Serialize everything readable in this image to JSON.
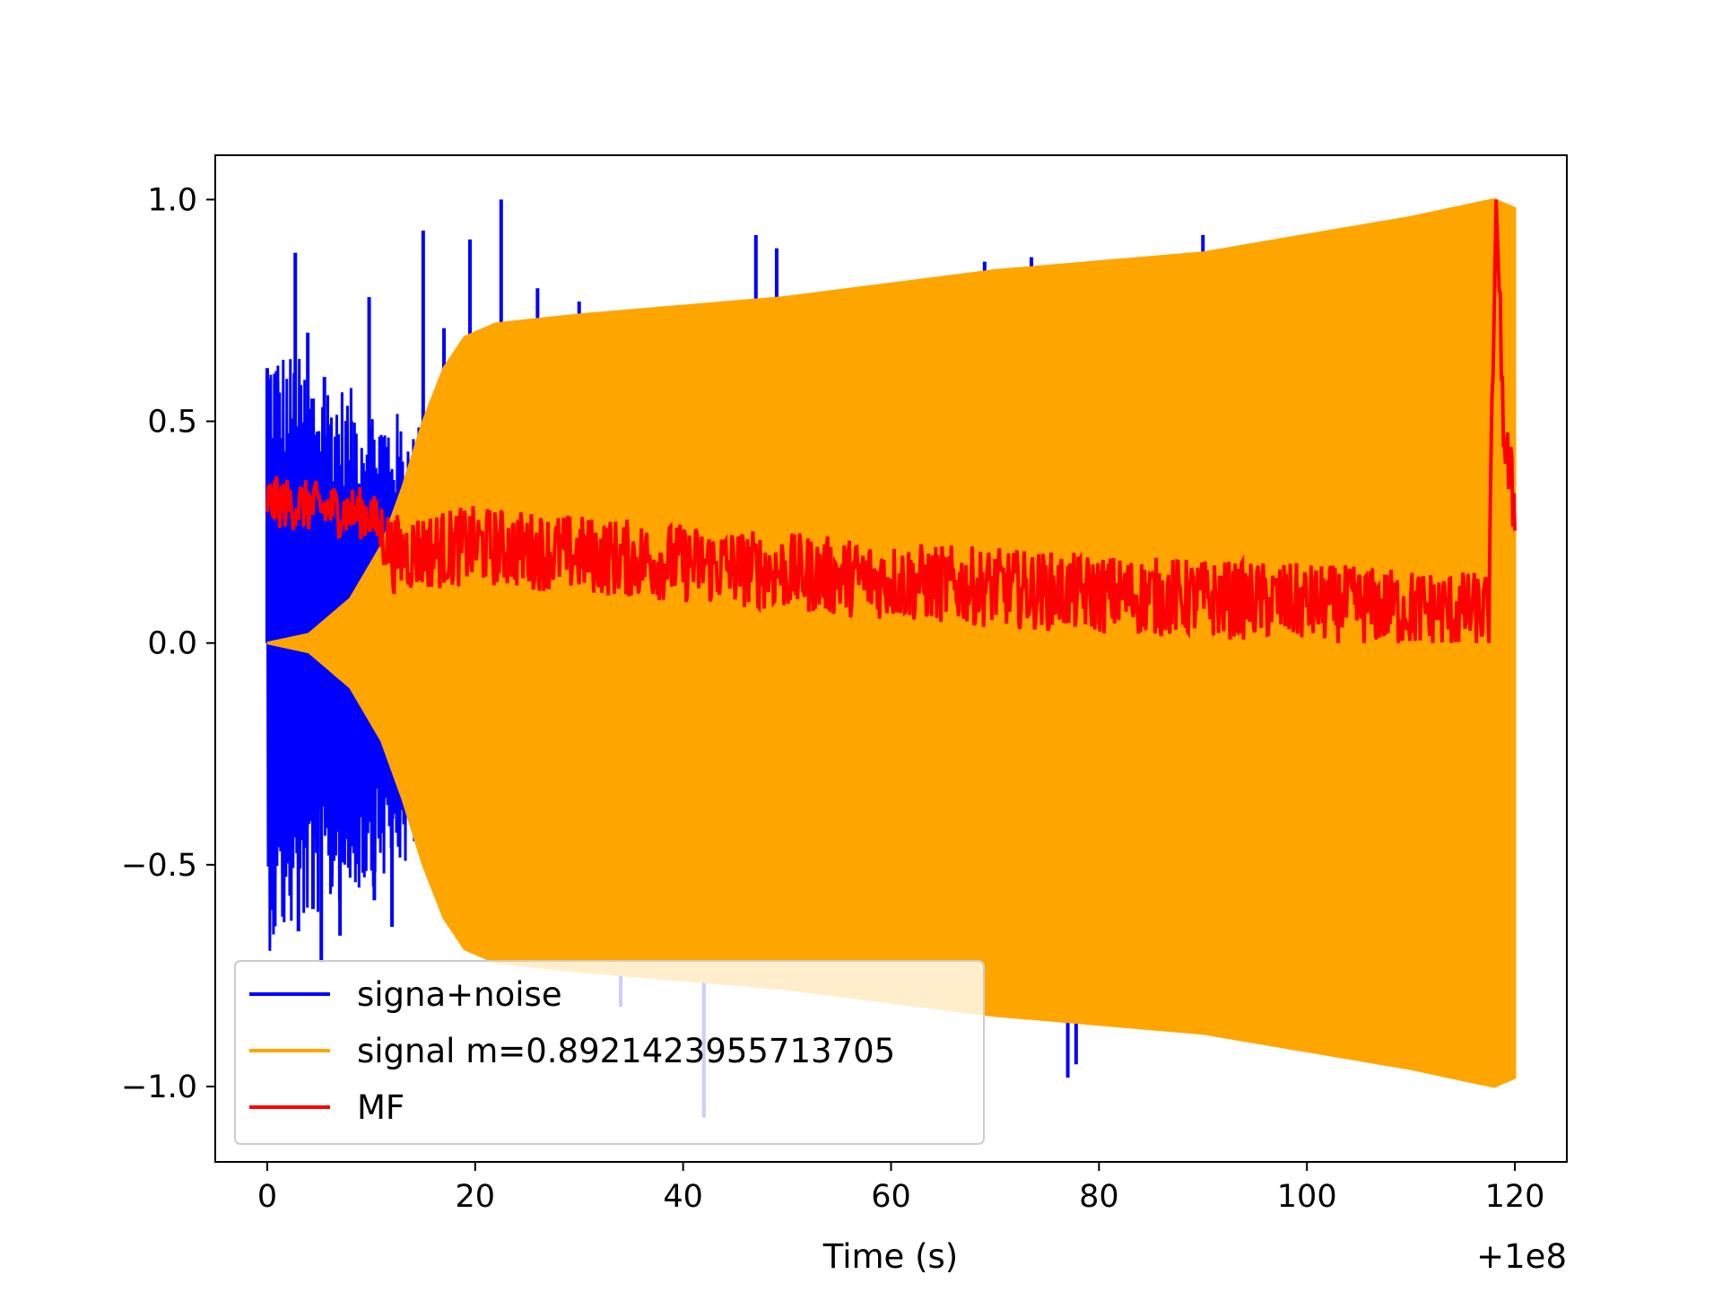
{
  "chart_data": {
    "type": "line",
    "title": "",
    "xlabel": "Time (s)",
    "ylabel": "",
    "x_offset_label": "+1e8",
    "xlim": [
      -5,
      125
    ],
    "ylim": [
      -1.17,
      1.1
    ],
    "x_ticks": [
      0,
      20,
      40,
      60,
      80,
      100,
      120
    ],
    "x_tick_labels": [
      "0",
      "20",
      "40",
      "60",
      "80",
      "100",
      "120"
    ],
    "y_ticks": [
      1.0,
      0.5,
      0.0,
      -0.5,
      -1.0
    ],
    "y_tick_labels": [
      "1.0",
      "0.5",
      "0.0",
      "−0.5",
      "−1.0"
    ],
    "grid": false,
    "legend_position": "lower-left",
    "series": [
      {
        "name": "signa+noise",
        "color": "#0000ff",
        "description_of_envelope": "noisy waveform; spikes to 1.0 near t=22; strongest before ~20 s",
        "spikes": [
          [
            0.0,
            0.62
          ],
          [
            0.5,
            -0.56
          ],
          [
            1.0,
            0.59
          ],
          [
            1.5,
            -0.52
          ],
          [
            2.2,
            -0.57
          ],
          [
            2.7,
            0.88
          ],
          [
            3.0,
            -0.65
          ],
          [
            3.9,
            0.7
          ],
          [
            4.4,
            -0.6
          ],
          [
            5.2,
            -0.72
          ],
          [
            5.5,
            0.6
          ],
          [
            6.2,
            -0.55
          ],
          [
            7.0,
            -0.66
          ],
          [
            8.1,
            0.5
          ],
          [
            9.8,
            0.78
          ],
          [
            10.3,
            -0.58
          ],
          [
            12.0,
            -0.64
          ],
          [
            15.0,
            0.93
          ],
          [
            17.0,
            0.71
          ],
          [
            19.5,
            0.91
          ],
          [
            22.5,
            1.0
          ],
          [
            26.0,
            0.8
          ],
          [
            30.0,
            0.77
          ],
          [
            34.0,
            -0.82
          ],
          [
            42.0,
            -1.07
          ],
          [
            47.0,
            0.92
          ],
          [
            49.0,
            0.89
          ],
          [
            69.0,
            0.86
          ],
          [
            73.5,
            0.87
          ],
          [
            77.0,
            -0.98
          ],
          [
            77.8,
            -0.95
          ],
          [
            90.0,
            0.92
          ]
        ]
      },
      {
        "name": "signal m=0.8921423955713705",
        "color": "#ffa500",
        "description_of_envelope": "chirp rising from 0 at t=0 to ~0.73 by t=22, growing to 1.0 at t=118, ending at t=120",
        "envelope": [
          [
            0,
            0.0
          ],
          [
            4,
            0.02
          ],
          [
            8,
            0.1
          ],
          [
            11,
            0.22
          ],
          [
            13,
            0.35
          ],
          [
            15,
            0.5
          ],
          [
            17,
            0.62
          ],
          [
            19,
            0.69
          ],
          [
            22,
            0.72
          ],
          [
            30,
            0.74
          ],
          [
            40,
            0.76
          ],
          [
            50,
            0.78
          ],
          [
            60,
            0.81
          ],
          [
            70,
            0.84
          ],
          [
            80,
            0.86
          ],
          [
            90,
            0.88
          ],
          [
            100,
            0.92
          ],
          [
            110,
            0.96
          ],
          [
            118,
            1.0
          ],
          [
            120,
            0.98
          ]
        ]
      },
      {
        "name": "MF",
        "color": "#ff0000",
        "description_of_envelope": "matched filter output; ~0.3 at start decaying to ~0.05 with a spike to 1.0 at t≈118",
        "trend": [
          [
            0,
            0.32
          ],
          [
            10,
            0.29
          ],
          [
            12,
            0.2
          ],
          [
            20,
            0.22
          ],
          [
            40,
            0.18
          ],
          [
            60,
            0.14
          ],
          [
            80,
            0.11
          ],
          [
            100,
            0.09
          ],
          [
            117.5,
            0.07
          ],
          [
            118.2,
            1.0
          ],
          [
            119,
            0.45
          ],
          [
            120,
            0.3
          ]
        ]
      }
    ]
  }
}
